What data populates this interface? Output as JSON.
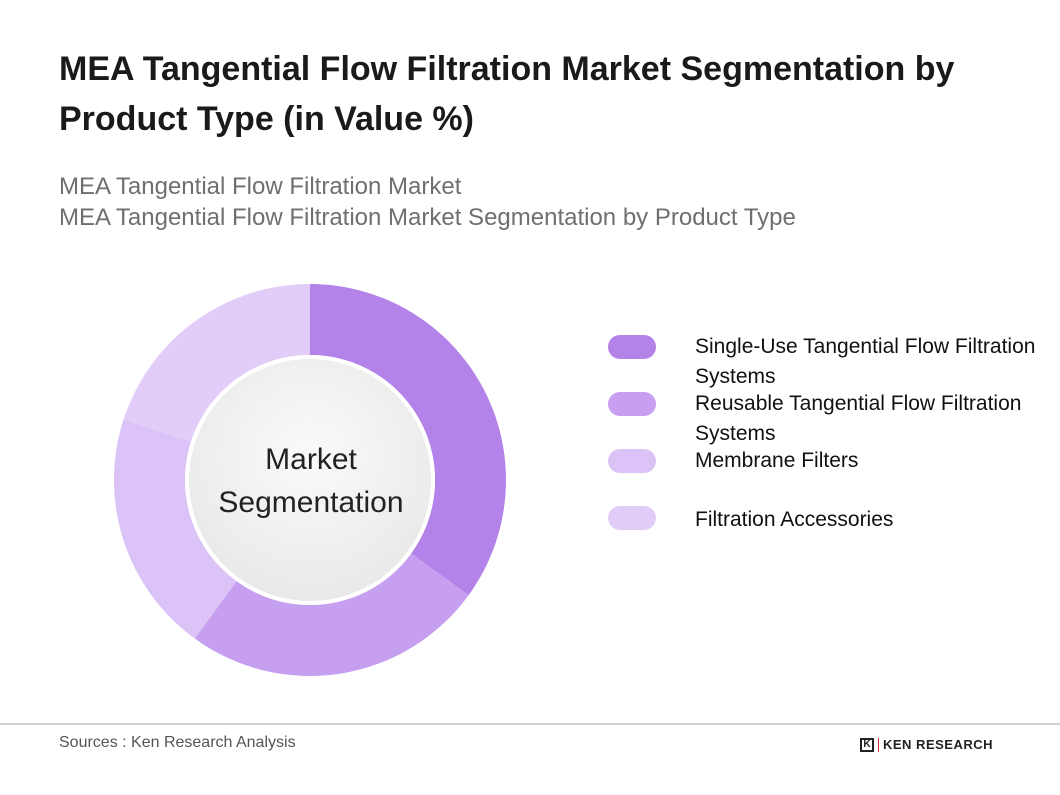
{
  "title": "MEA Tangential Flow Filtration Market Segmentation by Product Type (in Value %)",
  "subtitle_line1": "MEA Tangential Flow Filtration Market",
  "subtitle_line2": "MEA Tangential Flow Filtration Market Segmentation by Product Type",
  "center_label": [
    "Market",
    "Segmentation"
  ],
  "source": "Sources : Ken Research Analysis",
  "logo": {
    "mark": "K",
    "text": "KEN RESEARCH"
  },
  "chart_data": {
    "type": "pie",
    "style": "donut",
    "categories": [
      "Single-Use Tangential Flow Filtration Systems",
      "Reusable Tangential Flow Filtration Systems",
      "Membrane Filters",
      "Filtration Accessories"
    ],
    "values": [
      35,
      25,
      20,
      20
    ],
    "colors": [
      "#b383ea",
      "#c69ff0",
      "#dbc2f7",
      "#e2cdf9"
    ],
    "legend_position": "right"
  }
}
